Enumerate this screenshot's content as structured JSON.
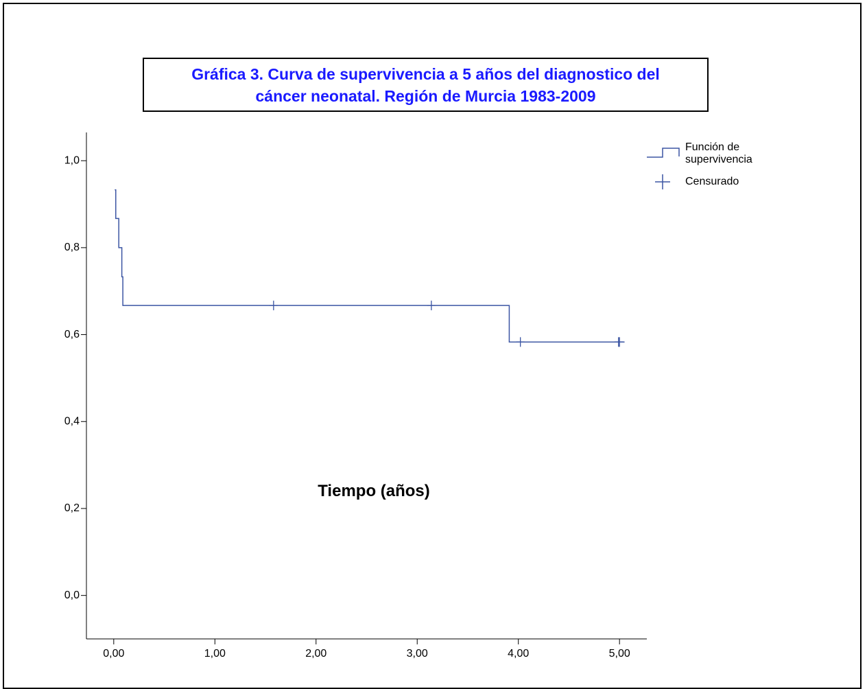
{
  "chart_data": {
    "type": "step",
    "title": "Gráfica 3. Curva de supervivencia a 5 años del diagnostico del cáncer neonatal. Región de Murcia 1983-2009",
    "x_label": "Tiempo  (años)",
    "xlim": [
      -0.27,
      5.27
    ],
    "ylim": [
      -0.1,
      1.065
    ],
    "xticks": [
      {
        "value": 0,
        "label": "0,00"
      },
      {
        "value": 1,
        "label": "1,00"
      },
      {
        "value": 2,
        "label": "2,00"
      },
      {
        "value": 3,
        "label": "3,00"
      },
      {
        "value": 4,
        "label": "4,00"
      },
      {
        "value": 5,
        "label": "5,00"
      }
    ],
    "yticks": [
      {
        "value": 0,
        "label": "0,0"
      },
      {
        "value": 0.2,
        "label": "0,2"
      },
      {
        "value": 0.4,
        "label": "0,4"
      },
      {
        "value": 0.6,
        "label": "0,6"
      },
      {
        "value": 0.8,
        "label": "0,8"
      },
      {
        "value": 1,
        "label": "1,0"
      }
    ],
    "series": [
      {
        "name": "Función de supervivencia",
        "color": "#3b55a3",
        "x": [
          0.01,
          0.02,
          0.05,
          0.08,
          0.09,
          3.91,
          5.05
        ],
        "values": [
          0.933,
          0.867,
          0.8,
          0.733,
          0.667,
          0.583,
          0.583
        ]
      },
      {
        "name": "Censurado",
        "color": "#3b55a3",
        "marker": "+",
        "x": [
          1.58,
          3.14,
          4.02,
          4.99,
          5.0
        ],
        "values": [
          0.667,
          0.667,
          0.583,
          0.583,
          0.583
        ]
      }
    ]
  }
}
